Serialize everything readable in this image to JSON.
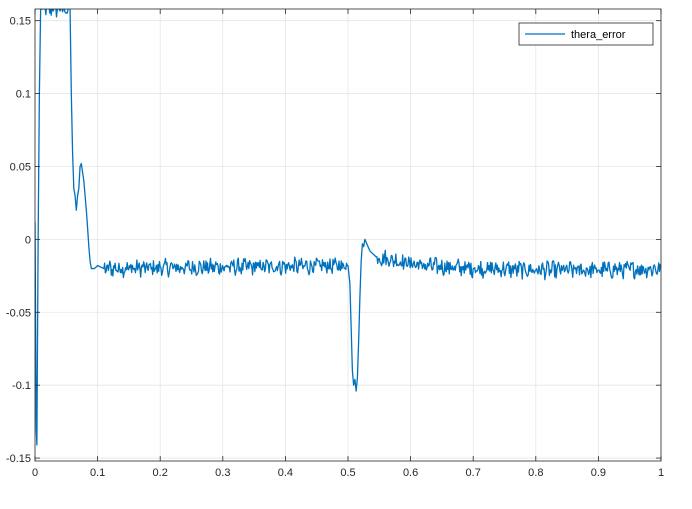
{
  "chart_data": {
    "type": "line",
    "title": "",
    "xlabel": "",
    "ylabel": "",
    "xlim": [
      0,
      1
    ],
    "ylim": [
      -0.152,
      0.158
    ],
    "grid": true,
    "legend_placement": "top-right",
    "x_ticks": [
      0,
      0.1,
      0.2,
      0.3,
      0.4,
      0.5,
      0.6,
      0.7,
      0.8,
      0.9,
      1
    ],
    "x_tick_labels": [
      "0",
      "0.1",
      "0.2",
      "0.3",
      "0.4",
      "0.5",
      "0.6",
      "0.7",
      "0.8",
      "0.9",
      "1"
    ],
    "y_ticks": [
      -0.15,
      -0.1,
      -0.05,
      0,
      0.05,
      0.1,
      0.15
    ],
    "y_tick_labels": [
      "-0.15",
      "-0.1",
      "-0.05",
      "0",
      "0.05",
      "0.1",
      "0.15"
    ],
    "series": [
      {
        "name": "thera_error",
        "color": "#0072BD",
        "points": [
          [
            0.0,
            0.012
          ],
          [
            0.002,
            -0.13
          ],
          [
            0.003,
            -0.141
          ],
          [
            0.005,
            0.0
          ],
          [
            0.007,
            0.1
          ],
          [
            0.009,
            0.158
          ],
          [
            0.056,
            0.158
          ],
          [
            0.058,
            0.1
          ],
          [
            0.06,
            0.06
          ],
          [
            0.062,
            0.035
          ],
          [
            0.064,
            0.03
          ],
          [
            0.066,
            0.02
          ],
          [
            0.068,
            0.03
          ],
          [
            0.07,
            0.035
          ],
          [
            0.072,
            0.05
          ],
          [
            0.074,
            0.052
          ],
          [
            0.076,
            0.046
          ],
          [
            0.078,
            0.04
          ],
          [
            0.08,
            0.03
          ],
          [
            0.082,
            0.02
          ],
          [
            0.084,
            0.008
          ],
          [
            0.086,
            -0.005
          ],
          [
            0.088,
            -0.015
          ],
          [
            0.09,
            -0.02
          ],
          [
            0.095,
            -0.02
          ],
          [
            0.1,
            -0.018
          ],
          [
            0.11,
            -0.02
          ],
          [
            0.5,
            -0.018
          ],
          [
            0.503,
            -0.03
          ],
          [
            0.505,
            -0.06
          ],
          [
            0.507,
            -0.09
          ],
          [
            0.509,
            -0.1
          ],
          [
            0.511,
            -0.096
          ],
          [
            0.513,
            -0.104
          ],
          [
            0.515,
            -0.095
          ],
          [
            0.517,
            -0.07
          ],
          [
            0.519,
            -0.04
          ],
          [
            0.521,
            -0.015
          ],
          [
            0.523,
            -0.003
          ],
          [
            0.525,
            -0.005
          ],
          [
            0.527,
            0.0
          ],
          [
            0.53,
            -0.003
          ],
          [
            0.535,
            -0.008
          ],
          [
            0.545,
            -0.012
          ],
          [
            0.62,
            -0.018
          ],
          [
            0.7,
            -0.02
          ],
          [
            0.8,
            -0.021
          ],
          [
            0.9,
            -0.021
          ],
          [
            1.0,
            -0.02
          ]
        ],
        "noise_amplitude": 0.005
      }
    ]
  }
}
